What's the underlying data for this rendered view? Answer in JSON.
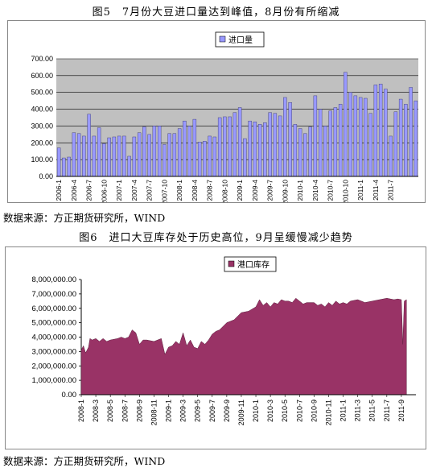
{
  "chart1": {
    "title": "图5　7月份大豆进口量达到峰值，8月份有所缩减",
    "source": "数据来源：方正期货研究所，WIND",
    "chart_data": {
      "type": "bar",
      "legend": [
        "进口量"
      ],
      "legend_position": "top-right",
      "colors": {
        "bar": "#9999ff",
        "plot_bg": "#c0c0c0"
      },
      "ylim": [
        0,
        700
      ],
      "yticks": [
        "700.00",
        "600.00",
        "500.00",
        "400.00",
        "300.00",
        "200.00",
        "100.00",
        "0.00"
      ],
      "xticks": [
        "2006-1",
        "2006-4",
        "2006-7",
        "2006-10",
        "2007-1",
        "2007-4",
        "2007-7",
        "2007-10",
        "2008-1",
        "2008-4",
        "2008-7",
        "2008-10",
        "2009-1",
        "2009-4",
        "2009-7",
        "2009-10",
        "2010-1",
        "2010-4",
        "2010-7",
        "2010-10",
        "2011-1",
        "2011-4",
        "2011-7"
      ],
      "series": [
        {
          "name": "进口量",
          "values": [
            170,
            110,
            115,
            260,
            255,
            240,
            370,
            240,
            290,
            195,
            230,
            235,
            240,
            240,
            120,
            235,
            260,
            295,
            250,
            300,
            300,
            190,
            255,
            255,
            285,
            330,
            300,
            340,
            205,
            210,
            240,
            235,
            350,
            355,
            355,
            380,
            410,
            225,
            330,
            325,
            310,
            320,
            380,
            375,
            360,
            470,
            440,
            310,
            285,
            255,
            295,
            480,
            400,
            300,
            390,
            410,
            430,
            620,
            500,
            480,
            470,
            465,
            375,
            545,
            550,
            520,
            240,
            385,
            460,
            430,
            530,
            450
          ]
        }
      ]
    }
  },
  "chart2": {
    "title": "图6　进口大豆库存处于历史高位，9月呈缓慢减少趋势",
    "source": "数据来源：方正期货研究所，WIND",
    "chart_data": {
      "type": "area",
      "legend": [
        "港口库存"
      ],
      "legend_position": "top-center",
      "colors": {
        "area": "#993366"
      },
      "ylim": [
        0,
        8000000
      ],
      "yticks": [
        "8,000,000.00",
        "7,000,000.00",
        "6,000,000.00",
        "5,000,000.00",
        "4,000,000.00",
        "3,000,000.00",
        "2,000,000.00",
        "1,000,000.00",
        "0.00"
      ],
      "xticks": [
        "2008-1",
        "2008-3",
        "2008-5",
        "2008-7",
        "2008-9",
        "2008-11",
        "2009-1",
        "2009-3",
        "2009-5",
        "2009-7",
        "2009-9",
        "2009-11",
        "2010-1",
        "2010-3",
        "2010-5",
        "2010-7",
        "2010-9",
        "2010-11",
        "2011-1",
        "2011-3",
        "2011-5",
        "2011-7",
        "2011-9"
      ],
      "x": [
        0,
        0.3,
        0.6,
        1,
        1.2,
        1.5,
        2,
        2.5,
        3,
        3.5,
        4,
        5,
        5.5,
        6,
        6.5,
        6.8,
        7,
        7.5,
        8,
        8.5,
        9,
        10,
        10.5,
        11,
        11.5,
        12,
        12.5,
        13,
        13.5,
        14,
        14.5,
        15,
        15.5,
        16,
        16.5,
        17,
        17.5,
        18,
        18.5,
        19,
        20,
        21,
        22,
        23,
        24,
        24.5,
        25,
        25.5,
        26,
        26.5,
        27,
        27.5,
        28,
        28.5,
        29,
        29.5,
        30,
        30.5,
        31,
        32,
        32.5,
        33,
        33.5,
        34,
        34.5,
        35,
        35.5,
        36,
        36.5,
        37,
        38,
        39,
        40,
        41,
        42,
        43,
        43.5,
        44,
        44.2,
        44.4,
        44.7
      ],
      "values": [
        3100000,
        3400000,
        2900000,
        3300000,
        3900000,
        3800000,
        3900000,
        3700000,
        3900000,
        3700000,
        3800000,
        3900000,
        4000000,
        3900000,
        4000000,
        4300000,
        4500000,
        4300000,
        3500000,
        3800000,
        3800000,
        3700000,
        3800000,
        3900000,
        2800000,
        3300000,
        3400000,
        3700000,
        3500000,
        4300000,
        3400000,
        3800000,
        3300000,
        3200000,
        3700000,
        3500000,
        3800000,
        4200000,
        4400000,
        4500000,
        5000000,
        5200000,
        5700000,
        5800000,
        6100000,
        6600000,
        6200000,
        6400000,
        6100000,
        6400000,
        6300000,
        6600000,
        6500000,
        6500000,
        6400000,
        6700000,
        6500000,
        6300000,
        6400000,
        6400000,
        6200000,
        6300000,
        6100000,
        6400000,
        6200000,
        6500000,
        6300000,
        6400000,
        6300000,
        6500000,
        6600000,
        6400000,
        6500000,
        6600000,
        6700000,
        6600000,
        6650000,
        6600000,
        3500000,
        6500000,
        6600000
      ]
    }
  }
}
